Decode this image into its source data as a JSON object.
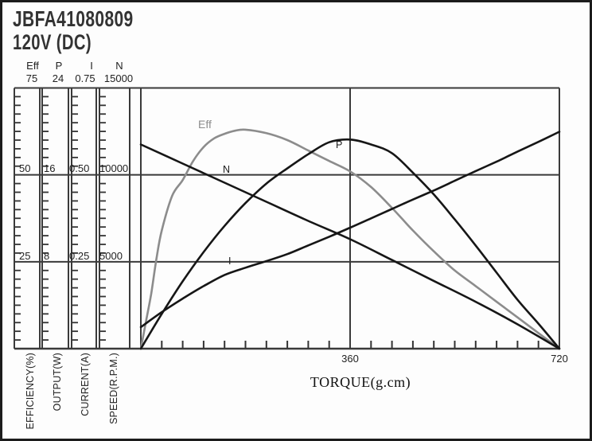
{
  "header": {
    "title": "JBFA41080809",
    "subtitle": "120V (DC)"
  },
  "colors": {
    "ink": "#1a1a1a",
    "grid": "#3a3a3a",
    "curve_black": "#161616",
    "curve_gray": "#8c8c8c",
    "background": "#fdfdfd"
  },
  "x_axis": {
    "label": "TORQUE(g.cm)"
  },
  "chart_data": {
    "type": "line",
    "title": "JBFA41080809",
    "subtitle": "120V (DC)",
    "xlabel": "TORQUE(g.cm)",
    "x_range": [
      0,
      720
    ],
    "x_major_ticks": [
      "360",
      "720"
    ],
    "x_minor_divisions": 20,
    "grid": "major-only",
    "legend_position": "labels-on-curves",
    "axes": [
      {
        "symbol": "Eff",
        "name": "EFFICIENCY(%)",
        "max": 75,
        "ticks": [
          "75",
          "50",
          "25"
        ]
      },
      {
        "symbol": "P",
        "name": "OUTPUT(W)",
        "max": 24,
        "ticks": [
          "24",
          "16",
          "8"
        ]
      },
      {
        "symbol": "I",
        "name": "CURRENT(A)",
        "max": 0.75,
        "ticks": [
          "0.75",
          "0.50",
          "0.25"
        ]
      },
      {
        "symbol": "N",
        "name": "SPEED(R.P.M.)",
        "max": 15000,
        "ticks": [
          "15000",
          "10000",
          "5000"
        ]
      }
    ],
    "series": [
      {
        "name": "Eff",
        "axis": "EFFICIENCY(%)",
        "unit": "%",
        "color": "#8c8c8c",
        "points": [
          [
            0,
            0
          ],
          [
            9,
            8
          ],
          [
            18,
            16
          ],
          [
            27,
            26
          ],
          [
            36,
            34
          ],
          [
            54,
            44
          ],
          [
            72,
            48.5
          ],
          [
            90,
            54
          ],
          [
            108,
            58
          ],
          [
            126,
            60.5
          ],
          [
            144,
            61.8
          ],
          [
            162,
            62.7
          ],
          [
            180,
            63
          ],
          [
            216,
            62
          ],
          [
            252,
            60
          ],
          [
            288,
            57
          ],
          [
            324,
            54
          ],
          [
            360,
            51
          ],
          [
            396,
            46.5
          ],
          [
            432,
            40.5
          ],
          [
            468,
            34
          ],
          [
            504,
            28
          ],
          [
            540,
            22.5
          ],
          [
            576,
            18
          ],
          [
            612,
            13.5
          ],
          [
            648,
            9
          ],
          [
            684,
            4.5
          ],
          [
            720,
            0
          ]
        ]
      },
      {
        "name": "N",
        "axis": "SPEED(R.P.M.)",
        "unit": "R.P.M.",
        "color": "#161616",
        "points": [
          [
            0,
            11750
          ],
          [
            72,
            10650
          ],
          [
            144,
            9550
          ],
          [
            216,
            8450
          ],
          [
            288,
            7350
          ],
          [
            360,
            6300
          ],
          [
            432,
            5100
          ],
          [
            504,
            3900
          ],
          [
            576,
            2700
          ],
          [
            648,
            1400
          ],
          [
            720,
            0
          ]
        ]
      },
      {
        "name": "P",
        "axis": "OUTPUT(W)",
        "unit": "W",
        "color": "#161616",
        "points": [
          [
            0,
            0
          ],
          [
            36,
            3.2
          ],
          [
            72,
            6.2
          ],
          [
            108,
            8.9
          ],
          [
            144,
            11.3
          ],
          [
            180,
            13.4
          ],
          [
            216,
            15.2
          ],
          [
            252,
            16.6
          ],
          [
            288,
            17.9
          ],
          [
            324,
            19.0
          ],
          [
            360,
            19.25
          ],
          [
            396,
            18.8
          ],
          [
            432,
            18.0
          ],
          [
            468,
            16.2
          ],
          [
            504,
            14.2
          ],
          [
            540,
            11.9
          ],
          [
            576,
            9.5
          ],
          [
            612,
            7.0
          ],
          [
            648,
            4.5
          ],
          [
            684,
            2.3
          ],
          [
            720,
            0
          ]
        ]
      },
      {
        "name": "I",
        "axis": "CURRENT(A)",
        "unit": "A",
        "color": "#161616",
        "points": [
          [
            0,
            0.062
          ],
          [
            36,
            0.105
          ],
          [
            72,
            0.144
          ],
          [
            108,
            0.18
          ],
          [
            144,
            0.212
          ],
          [
            180,
            0.233
          ],
          [
            216,
            0.252
          ],
          [
            252,
            0.272
          ],
          [
            288,
            0.297
          ],
          [
            324,
            0.322
          ],
          [
            360,
            0.348
          ],
          [
            396,
            0.375
          ],
          [
            432,
            0.402
          ],
          [
            468,
            0.429
          ],
          [
            504,
            0.455
          ],
          [
            540,
            0.483
          ],
          [
            576,
            0.511
          ],
          [
            612,
            0.538
          ],
          [
            648,
            0.567
          ],
          [
            684,
            0.595
          ],
          [
            720,
            0.624
          ]
        ]
      }
    ]
  }
}
